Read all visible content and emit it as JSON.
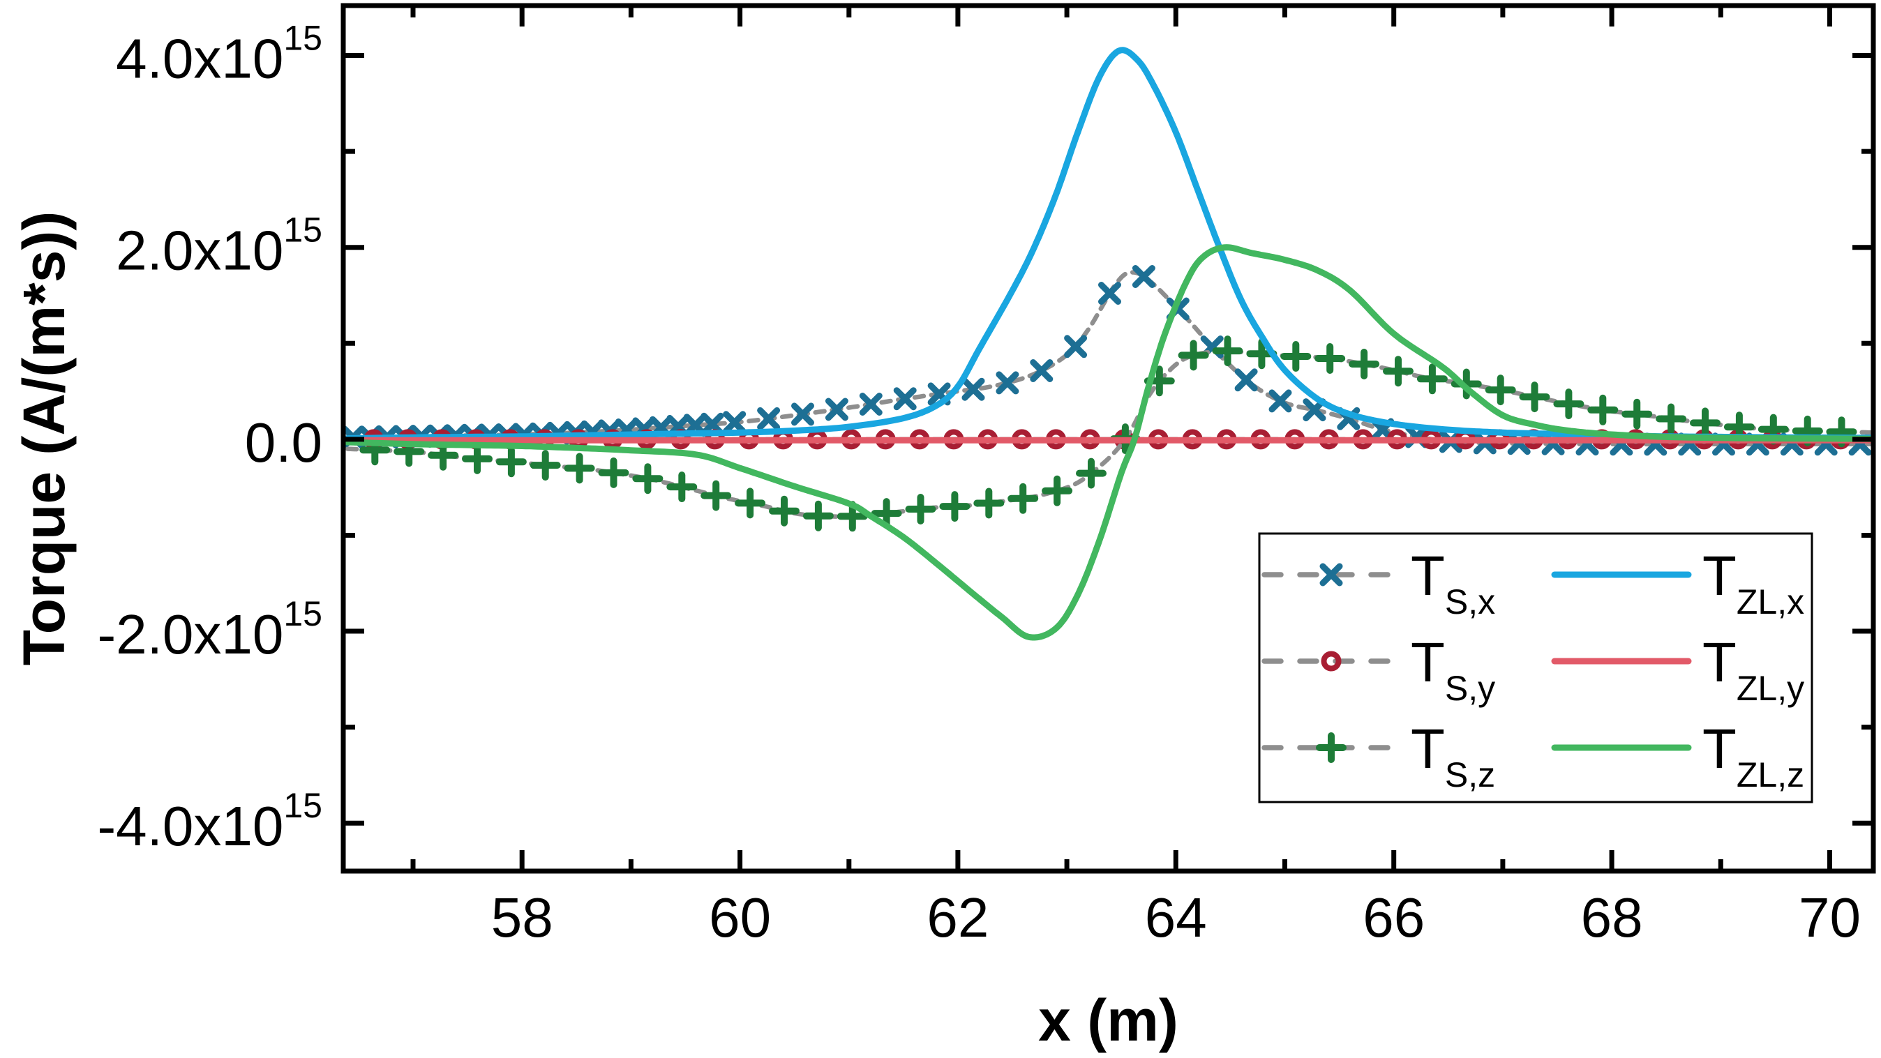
{
  "chart_data": {
    "type": "line",
    "title": "",
    "xlabel": "x (m)",
    "ylabel": "Torque (A/(m*s))",
    "xlim": [
      56.36,
      70.4
    ],
    "ylim_e15": [
      -4.5,
      4.52
    ],
    "grid": false,
    "legend_position": "lower right inside",
    "x_major_ticks": [
      58,
      60,
      62,
      64,
      66,
      68,
      70
    ],
    "x_tick_labels": [
      "58",
      "60",
      "62",
      "64",
      "66",
      "68",
      "70"
    ],
    "x_minor_ticks": [
      57,
      59,
      61,
      63,
      65,
      67,
      69
    ],
    "y_major_ticks_e15": [
      4,
      2,
      0,
      -2,
      -4
    ],
    "y_tick_labels": [
      {
        "text": "4.0x10",
        "sup": "15"
      },
      {
        "text": "2.0x10",
        "sup": "15"
      },
      {
        "text": "0.0",
        "sup": ""
      },
      {
        "text": "-2.0x10",
        "sup": "15"
      },
      {
        "text": "-4.0x10",
        "sup": "15"
      }
    ],
    "y_minor_ticks_e15": [
      3,
      1,
      -1,
      -3
    ],
    "y_unit_scale": "1e15 A/(m*s)",
    "colors": {
      "ts_x_marker": "#1d6f94",
      "ts_y_marker": "#a81e33",
      "ts_z_marker": "#1e7c38",
      "tzl_x_line": "#19a6e0",
      "tzl_y_line": "#e25a68",
      "tzl_z_line": "#42b75f",
      "dashed_connector": "#8e8e8e",
      "axis": "#000000"
    },
    "series": [
      {
        "name": "T_S,x",
        "legend": {
          "main": "T",
          "sub": "S,x"
        },
        "style": "dashed-marker",
        "marker": "x",
        "marker_color": "#1d6f94",
        "line_color": "#8e8e8e",
        "marker_runs": [
          {
            "start": 56.45,
            "step": 0.157,
            "until": 59.8
          },
          {
            "start": 59.95,
            "step": 0.313,
            "until": 70.38
          }
        ],
        "points": [
          [
            56.4,
            0.02
          ],
          [
            57.0,
            0.03
          ],
          [
            57.5,
            0.04
          ],
          [
            58.0,
            0.05
          ],
          [
            58.5,
            0.07
          ],
          [
            59.0,
            0.1
          ],
          [
            59.5,
            0.14
          ],
          [
            60.0,
            0.18
          ],
          [
            60.5,
            0.25
          ],
          [
            61.0,
            0.33
          ],
          [
            61.5,
            0.42
          ],
          [
            62.0,
            0.5
          ],
          [
            62.35,
            0.56
          ],
          [
            62.7,
            0.68
          ],
          [
            63.0,
            0.88
          ],
          [
            63.2,
            1.15
          ],
          [
            63.45,
            1.62
          ],
          [
            63.6,
            1.74
          ],
          [
            63.78,
            1.63
          ],
          [
            64.1,
            1.26
          ],
          [
            64.4,
            0.88
          ],
          [
            64.7,
            0.57
          ],
          [
            65.0,
            0.38
          ],
          [
            65.3,
            0.3
          ],
          [
            65.6,
            0.21
          ],
          [
            65.9,
            0.1
          ],
          [
            66.2,
            0.03
          ],
          [
            66.5,
            -0.02
          ],
          [
            67.0,
            -0.04
          ],
          [
            68.0,
            -0.05
          ],
          [
            69.0,
            -0.05
          ],
          [
            70.4,
            -0.05
          ]
        ]
      },
      {
        "name": "T_S,y",
        "legend": {
          "main": "T",
          "sub": "S,y"
        },
        "style": "dashed-marker",
        "marker": "o",
        "marker_color": "#a81e33",
        "line_color": "#8e8e8e",
        "marker_runs": [
          {
            "start": 56.64,
            "step": 0.313,
            "until": 70.38
          }
        ],
        "points": [
          [
            56.4,
            0.0
          ],
          [
            60.0,
            0.0
          ],
          [
            64.0,
            0.0
          ],
          [
            68.0,
            0.0
          ],
          [
            70.4,
            0.0
          ]
        ]
      },
      {
        "name": "T_S,z",
        "legend": {
          "main": "T",
          "sub": "S,z"
        },
        "style": "dashed-marker",
        "marker": "+",
        "marker_color": "#1e7c38",
        "line_color": "#8e8e8e",
        "marker_runs": [
          {
            "start": 56.65,
            "step": 0.313,
            "until": 70.38
          }
        ],
        "points": [
          [
            56.4,
            -0.1
          ],
          [
            57.0,
            -0.13
          ],
          [
            57.3,
            -0.17
          ],
          [
            57.65,
            -0.21
          ],
          [
            58.0,
            -0.245
          ],
          [
            58.3,
            -0.28
          ],
          [
            58.6,
            -0.31
          ],
          [
            58.9,
            -0.36
          ],
          [
            59.2,
            -0.42
          ],
          [
            59.55,
            -0.52
          ],
          [
            59.9,
            -0.62
          ],
          [
            60.2,
            -0.69
          ],
          [
            60.55,
            -0.78
          ],
          [
            60.9,
            -0.805
          ],
          [
            61.2,
            -0.79
          ],
          [
            61.5,
            -0.75
          ],
          [
            61.8,
            -0.71
          ],
          [
            62.1,
            -0.69
          ],
          [
            62.45,
            -0.64
          ],
          [
            62.75,
            -0.585
          ],
          [
            63.05,
            -0.48
          ],
          [
            63.25,
            -0.33
          ],
          [
            63.45,
            -0.12
          ],
          [
            63.6,
            0.12
          ],
          [
            63.75,
            0.45
          ],
          [
            63.9,
            0.67
          ],
          [
            64.1,
            0.85
          ],
          [
            64.4,
            0.92
          ],
          [
            64.7,
            0.9
          ],
          [
            65.0,
            0.87
          ],
          [
            65.35,
            0.85
          ],
          [
            65.65,
            0.8
          ],
          [
            66.0,
            0.72
          ],
          [
            66.3,
            0.64
          ],
          [
            66.65,
            0.58
          ],
          [
            67.0,
            0.51
          ],
          [
            67.3,
            0.44
          ],
          [
            67.6,
            0.37
          ],
          [
            67.95,
            0.3
          ],
          [
            68.25,
            0.26
          ],
          [
            68.6,
            0.205
          ],
          [
            68.9,
            0.165
          ],
          [
            69.2,
            0.125
          ],
          [
            69.55,
            0.1
          ],
          [
            69.85,
            0.085
          ],
          [
            70.4,
            0.07
          ]
        ]
      },
      {
        "name": "T_ZL,x",
        "legend": {
          "main": "T",
          "sub": "ZL,x"
        },
        "style": "solid",
        "color": "#19a6e0",
        "points": [
          [
            56.4,
            0.01
          ],
          [
            57.0,
            0.02
          ],
          [
            57.5,
            0.025
          ],
          [
            58.0,
            0.03
          ],
          [
            58.5,
            0.04
          ],
          [
            59.0,
            0.05
          ],
          [
            59.5,
            0.06
          ],
          [
            60.0,
            0.07
          ],
          [
            60.5,
            0.09
          ],
          [
            61.0,
            0.13
          ],
          [
            61.5,
            0.22
          ],
          [
            61.8,
            0.35
          ],
          [
            62.0,
            0.55
          ],
          [
            62.2,
            0.95
          ],
          [
            62.5,
            1.55
          ],
          [
            62.7,
            2.0
          ],
          [
            62.9,
            2.55
          ],
          [
            63.1,
            3.2
          ],
          [
            63.3,
            3.78
          ],
          [
            63.48,
            4.05
          ],
          [
            63.65,
            3.95
          ],
          [
            63.8,
            3.68
          ],
          [
            64.0,
            3.2
          ],
          [
            64.2,
            2.6
          ],
          [
            64.4,
            2.0
          ],
          [
            64.6,
            1.45
          ],
          [
            64.8,
            1.05
          ],
          [
            65.0,
            0.72
          ],
          [
            65.3,
            0.42
          ],
          [
            65.6,
            0.26
          ],
          [
            66.0,
            0.16
          ],
          [
            66.5,
            0.1
          ],
          [
            67.0,
            0.07
          ],
          [
            67.5,
            0.055
          ],
          [
            68.0,
            0.04
          ],
          [
            68.5,
            0.03
          ],
          [
            69.0,
            0.025
          ],
          [
            69.5,
            0.02
          ],
          [
            70.4,
            0.015
          ]
        ]
      },
      {
        "name": "T_ZL,y",
        "legend": {
          "main": "T",
          "sub": "ZL,y"
        },
        "style": "solid",
        "color": "#e25a68",
        "points": [
          [
            56.4,
            -0.01
          ],
          [
            60.0,
            -0.01
          ],
          [
            64.0,
            -0.01
          ],
          [
            68.0,
            -0.01
          ],
          [
            70.4,
            -0.01
          ]
        ]
      },
      {
        "name": "T_ZL,z",
        "legend": {
          "main": "T",
          "sub": "ZL,z"
        },
        "style": "solid",
        "color": "#42b75f",
        "points": [
          [
            56.4,
            -0.03
          ],
          [
            57.0,
            -0.05
          ],
          [
            57.5,
            -0.06
          ],
          [
            58.0,
            -0.07
          ],
          [
            58.5,
            -0.09
          ],
          [
            59.0,
            -0.115
          ],
          [
            59.6,
            -0.16
          ],
          [
            60.0,
            -0.3
          ],
          [
            60.5,
            -0.49
          ],
          [
            61.0,
            -0.67
          ],
          [
            61.2,
            -0.8
          ],
          [
            61.5,
            -1.02
          ],
          [
            61.8,
            -1.29
          ],
          [
            62.15,
            -1.62
          ],
          [
            62.4,
            -1.85
          ],
          [
            62.65,
            -2.06
          ],
          [
            62.9,
            -1.97
          ],
          [
            63.1,
            -1.62
          ],
          [
            63.3,
            -1.05
          ],
          [
            63.5,
            -0.35
          ],
          [
            63.62,
            0.0
          ],
          [
            63.75,
            0.55
          ],
          [
            63.9,
            1.1
          ],
          [
            64.1,
            1.65
          ],
          [
            64.25,
            1.9
          ],
          [
            64.45,
            2.0
          ],
          [
            64.7,
            1.94
          ],
          [
            65.0,
            1.87
          ],
          [
            65.3,
            1.76
          ],
          [
            65.6,
            1.55
          ],
          [
            66.0,
            1.1
          ],
          [
            66.45,
            0.75
          ],
          [
            66.7,
            0.5
          ],
          [
            67.0,
            0.25
          ],
          [
            67.3,
            0.15
          ],
          [
            67.6,
            0.09
          ],
          [
            68.0,
            0.05
          ],
          [
            68.5,
            0.025
          ],
          [
            69.0,
            0.015
          ],
          [
            69.5,
            0.01
          ],
          [
            70.4,
            0.005
          ]
        ]
      }
    ],
    "legend_pairs": [
      [
        "T_S,x",
        "T_ZL,x"
      ],
      [
        "T_S,y",
        "T_ZL,y"
      ],
      [
        "T_S,z",
        "T_ZL,z"
      ]
    ]
  }
}
